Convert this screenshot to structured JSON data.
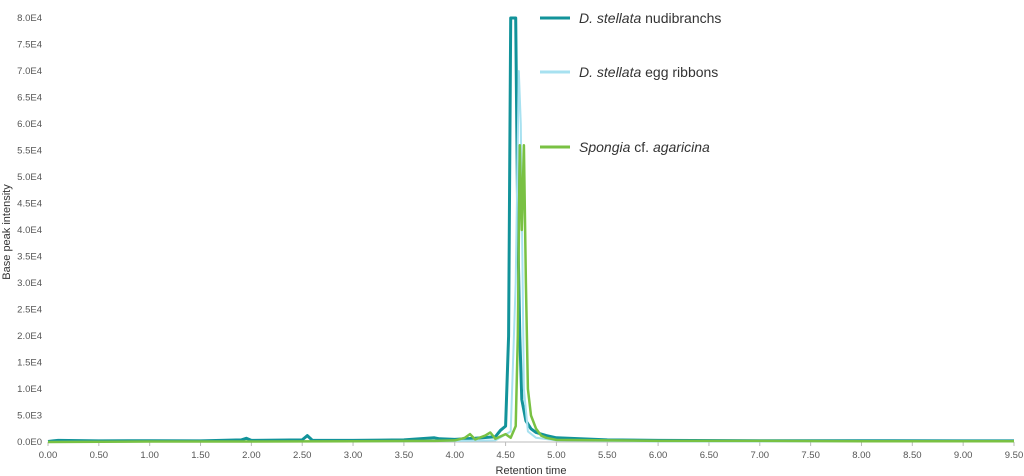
{
  "chart_data": {
    "type": "line",
    "xlabel": "Retention time",
    "ylabel": "Base peak intensity",
    "xlim": [
      0,
      9.5
    ],
    "ylim": [
      0,
      80000
    ],
    "x_ticks": [
      "0.00",
      "0.50",
      "1.00",
      "1.50",
      "2.00",
      "2.50",
      "3.00",
      "3.50",
      "4.00",
      "4.50",
      "5.00",
      "5.50",
      "6.00",
      "6.50",
      "7.00",
      "7.50",
      "8.00",
      "8.50",
      "9.00",
      "9.50"
    ],
    "y_ticks": [
      "0.0E0",
      "5.0E3",
      "1.0E4",
      "1.5E4",
      "2.0E4",
      "2.5E4",
      "3.0E4",
      "3.5E4",
      "4.0E4",
      "4.5E4",
      "5.0E4",
      "5.5E4",
      "6.0E4",
      "6.5E4",
      "7.0E4",
      "7.5E4",
      "8.0E4"
    ],
    "grid": false,
    "legend_position": "top-center",
    "series": [
      {
        "name_italic": "D. stellata",
        "name_rest": " nudibranchs",
        "color": "#12939A",
        "points": [
          [
            0,
            100
          ],
          [
            0.05,
            200
          ],
          [
            0.1,
            300
          ],
          [
            0.5,
            200
          ],
          [
            1.0,
            250
          ],
          [
            1.5,
            200
          ],
          [
            1.9,
            400
          ],
          [
            1.95,
            700
          ],
          [
            2.0,
            300
          ],
          [
            2.5,
            400
          ],
          [
            2.55,
            1200
          ],
          [
            2.6,
            300
          ],
          [
            3.0,
            300
          ],
          [
            3.5,
            400
          ],
          [
            3.8,
            800
          ],
          [
            3.85,
            600
          ],
          [
            4.0,
            500
          ],
          [
            4.2,
            700
          ],
          [
            4.4,
            1000
          ],
          [
            4.45,
            2200
          ],
          [
            4.5,
            3000
          ],
          [
            4.53,
            20000
          ],
          [
            4.55,
            80000
          ],
          [
            4.6,
            80000
          ],
          [
            4.62,
            40000
          ],
          [
            4.64,
            20000
          ],
          [
            4.66,
            8000
          ],
          [
            4.7,
            4000
          ],
          [
            4.75,
            2500
          ],
          [
            4.8,
            1800
          ],
          [
            4.9,
            1200
          ],
          [
            5.0,
            800
          ],
          [
            5.5,
            400
          ],
          [
            6.0,
            300
          ],
          [
            7.0,
            250
          ],
          [
            8.0,
            250
          ],
          [
            9.0,
            200
          ],
          [
            9.5,
            200
          ]
        ]
      },
      {
        "name_italic": "D. stellata",
        "name_rest": " egg ribbons",
        "color": "#A7E1F0",
        "points": [
          [
            0,
            0
          ],
          [
            1.0,
            100
          ],
          [
            2.0,
            100
          ],
          [
            3.0,
            100
          ],
          [
            4.0,
            200
          ],
          [
            4.4,
            300
          ],
          [
            4.55,
            2000
          ],
          [
            4.6,
            30000
          ],
          [
            4.63,
            70000
          ],
          [
            4.65,
            60000
          ],
          [
            4.68,
            10000
          ],
          [
            4.72,
            2000
          ],
          [
            4.8,
            800
          ],
          [
            5.0,
            300
          ],
          [
            6.0,
            100
          ],
          [
            7.0,
            100
          ],
          [
            8.0,
            100
          ],
          [
            9.0,
            100
          ],
          [
            9.5,
            100
          ]
        ]
      },
      {
        "name_italic": "Spongia",
        "name_rest_plain": " cf. ",
        "name_italic_2": "agaricina",
        "color": "#79C143",
        "points": [
          [
            0,
            0
          ],
          [
            1.0,
            100
          ],
          [
            2.0,
            100
          ],
          [
            3.0,
            150
          ],
          [
            3.8,
            200
          ],
          [
            4.0,
            300
          ],
          [
            4.1,
            800
          ],
          [
            4.15,
            1500
          ],
          [
            4.2,
            500
          ],
          [
            4.3,
            1200
          ],
          [
            4.35,
            1800
          ],
          [
            4.4,
            600
          ],
          [
            4.5,
            1500
          ],
          [
            4.55,
            800
          ],
          [
            4.6,
            3000
          ],
          [
            4.62,
            20000
          ],
          [
            4.64,
            56000
          ],
          [
            4.66,
            40000
          ],
          [
            4.68,
            56000
          ],
          [
            4.7,
            30000
          ],
          [
            4.72,
            10000
          ],
          [
            4.75,
            5000
          ],
          [
            4.8,
            2500
          ],
          [
            4.85,
            1200
          ],
          [
            4.9,
            800
          ],
          [
            5.0,
            400
          ],
          [
            5.5,
            300
          ],
          [
            6.0,
            200
          ],
          [
            7.0,
            200
          ],
          [
            8.0,
            150
          ],
          [
            9.0,
            150
          ],
          [
            9.5,
            150
          ]
        ]
      }
    ]
  }
}
